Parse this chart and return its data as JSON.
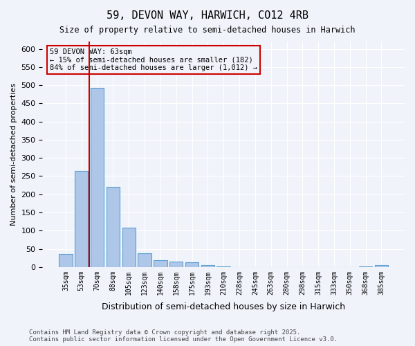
{
  "title1": "59, DEVON WAY, HARWICH, CO12 4RB",
  "title2": "Size of property relative to semi-detached houses in Harwich",
  "xlabel": "Distribution of semi-detached houses by size in Harwich",
  "ylabel": "Number of semi-detached properties",
  "footnote": "Contains HM Land Registry data © Crown copyright and database right 2025.\nContains public sector information licensed under the Open Government Licence v3.0.",
  "bar_labels": [
    "35sqm",
    "53sqm",
    "70sqm",
    "88sqm",
    "105sqm",
    "123sqm",
    "140sqm",
    "158sqm",
    "175sqm",
    "193sqm",
    "210sqm",
    "228sqm",
    "245sqm",
    "263sqm",
    "280sqm",
    "298sqm",
    "315sqm",
    "333sqm",
    "350sqm",
    "368sqm",
    "385sqm"
  ],
  "bar_values": [
    35,
    265,
    493,
    220,
    108,
    38,
    18,
    15,
    13,
    5,
    1,
    0,
    0,
    0,
    0,
    0,
    0,
    0,
    0,
    2,
    5
  ],
  "bar_color": "#aec6e8",
  "bar_edge_color": "#5a9fd4",
  "vline_x": 1.5,
  "vline_color": "#cc0000",
  "annotation_title": "59 DEVON WAY: 63sqm",
  "annotation_line1": "← 15% of semi-detached houses are smaller (182)",
  "annotation_line2": "84% of semi-detached houses are larger (1,012) →",
  "annotation_box_color": "#cc0000",
  "ylim": [
    0,
    620
  ],
  "yticks": [
    0,
    50,
    100,
    150,
    200,
    250,
    300,
    350,
    400,
    450,
    500,
    550,
    600
  ],
  "bg_color": "#f0f4fa",
  "grid_color": "#ffffff"
}
